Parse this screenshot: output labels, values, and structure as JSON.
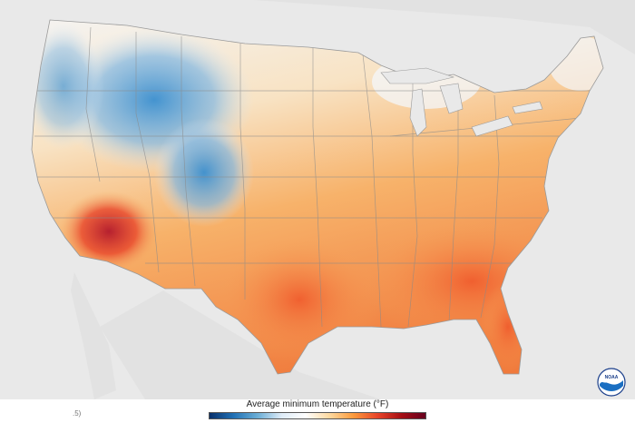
{
  "legend": {
    "title": "Average minimum temperature (°F)",
    "scale_colors": [
      "#08306b",
      "#2171b5",
      "#6baed6",
      "#deebf7",
      "#ffffff",
      "#fdd9a0",
      "#fb9a3c",
      "#e8452a",
      "#a50f15",
      "#67001f"
    ]
  },
  "footer": {
    "note": ".5)"
  },
  "logo": {
    "label": "NOAA"
  },
  "map": {
    "background_color": "#e9e9e9",
    "land_color": "#dddddd",
    "cold_color": "#3a8fd0",
    "neutral_color": "#f4f7fb",
    "warm_color": "#f7b26a",
    "hot_color": "#e8452a"
  }
}
